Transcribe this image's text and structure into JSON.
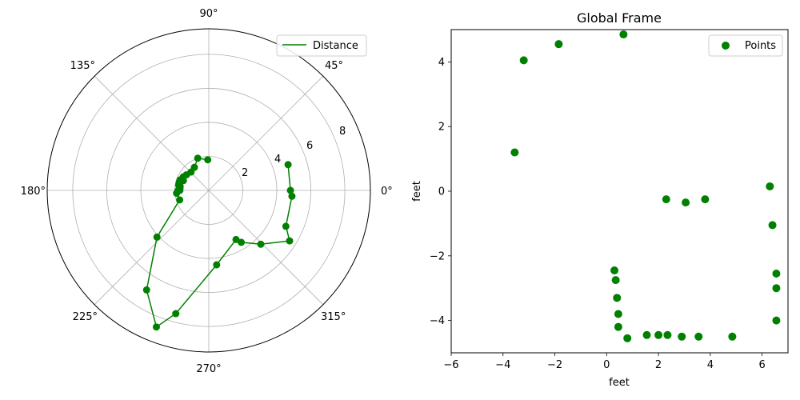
{
  "chart_data": [
    {
      "type": "polar-line",
      "series": [
        {
          "name": "Distance",
          "color": "#008000",
          "theta_deg": [
            18,
            0,
            -4,
            -25,
            -32,
            -46,
            -58,
            -61,
            -84,
            -105,
            -111,
            -122,
            -138,
            -162,
            -175,
            -180,
            -180,
            -180,
            -185,
            -190,
            -196,
            -200,
            172,
            166,
            159,
            152,
            145,
            134,
            122,
            109,
            92
          ],
          "r": [
            4.9,
            4.8,
            4.9,
            5.0,
            5.6,
            4.4,
            3.6,
            3.3,
            4.4,
            7.5,
            8.6,
            6.9,
            4.1,
            1.8,
            1.9,
            1.8,
            1.7,
            1.8,
            1.7,
            1.8,
            1.8,
            1.8,
            1.7,
            1.8,
            1.6,
            1.7,
            1.6,
            1.5,
            1.6,
            2.0,
            1.8
          ]
        }
      ],
      "theta_tick_labels": [
        "0°",
        "45°",
        "90°",
        "135°",
        "180°",
        "225°",
        "270°",
        "315°"
      ],
      "r_tick_labels": [
        "2",
        "4",
        "6",
        "8"
      ],
      "rlim": [
        0,
        9.5
      ],
      "grid": true,
      "legend": "upper-right"
    },
    {
      "type": "scatter",
      "title": "Global Frame",
      "xlabel": "feet",
      "ylabel": "feet",
      "xlim": [
        -6,
        7
      ],
      "ylim": [
        -5,
        5
      ],
      "x_ticks": [
        -6,
        -4,
        -2,
        0,
        2,
        4,
        6
      ],
      "x_tick_labels": [
        "−6",
        "−4",
        "−2",
        "0",
        "2",
        "4",
        "6"
      ],
      "y_ticks": [
        -4,
        -2,
        0,
        2,
        4
      ],
      "y_tick_labels": [
        "−4",
        "−2",
        "0",
        "2",
        "4"
      ],
      "grid": false,
      "legend": "upper-right",
      "series": [
        {
          "name": "Points",
          "color": "#008000",
          "points": [
            [
              -3.2,
              4.05
            ],
            [
              -1.85,
              4.55
            ],
            [
              0.65,
              4.85
            ],
            [
              -3.55,
              1.2
            ],
            [
              2.3,
              -0.25
            ],
            [
              3.05,
              -0.35
            ],
            [
              3.8,
              -0.25
            ],
            [
              6.3,
              0.15
            ],
            [
              6.4,
              -1.05
            ],
            [
              6.55,
              -2.55
            ],
            [
              6.55,
              -3.0
            ],
            [
              6.55,
              -4.0
            ],
            [
              0.3,
              -2.45
            ],
            [
              0.35,
              -2.75
            ],
            [
              0.4,
              -3.3
            ],
            [
              0.45,
              -3.8
            ],
            [
              0.45,
              -4.2
            ],
            [
              0.8,
              -4.55
            ],
            [
              1.55,
              -4.45
            ],
            [
              2.0,
              -4.45
            ],
            [
              2.35,
              -4.45
            ],
            [
              2.9,
              -4.5
            ],
            [
              3.55,
              -4.5
            ],
            [
              4.85,
              -4.5
            ]
          ]
        }
      ]
    }
  ]
}
